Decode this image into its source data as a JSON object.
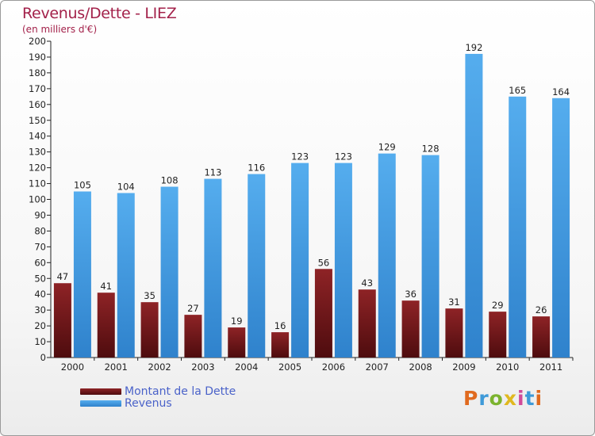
{
  "header": {
    "title": "Revenus/Dette - LIEZ",
    "unit": "(en milliers d'€)"
  },
  "chart_data": {
    "type": "bar",
    "categories": [
      "2000",
      "2001",
      "2002",
      "2003",
      "2004",
      "2005",
      "2006",
      "2007",
      "2008",
      "2009",
      "2010",
      "2011"
    ],
    "series": [
      {
        "name": "Montant de la Dette",
        "values": [
          47,
          41,
          35,
          27,
          19,
          16,
          56,
          43,
          36,
          31,
          29,
          26
        ],
        "color": "#7a1a1c"
      },
      {
        "name": "Revenus",
        "values": [
          105,
          104,
          108,
          113,
          116,
          123,
          123,
          129,
          128,
          192,
          165,
          164
        ],
        "color": "#4aa3e6"
      }
    ],
    "ylim": [
      0,
      200
    ],
    "ytick_step": 10,
    "grid": false,
    "legend_position": "bottom-left"
  },
  "branding": {
    "logo_text": "Proxiti",
    "colors": [
      "#e06a1f",
      "#3f9ad8",
      "#7bb32e",
      "#e0b81f",
      "#d14a9a",
      "#3f9ad8",
      "#e06a1f"
    ]
  }
}
